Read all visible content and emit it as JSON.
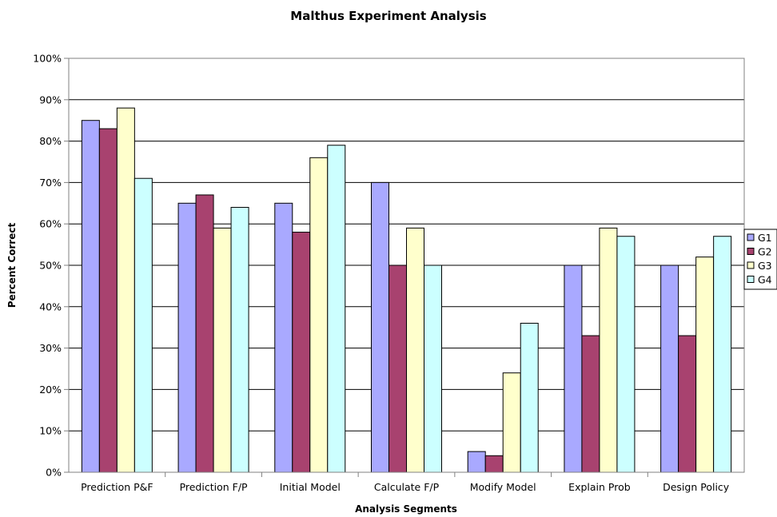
{
  "chart_data": {
    "type": "bar",
    "title": "Malthus Experiment Analysis",
    "xlabel": "Analysis Segments",
    "ylabel": "Percent Correct",
    "ylim": [
      0,
      100
    ],
    "yticks": [
      "0%",
      "10%",
      "20%",
      "30%",
      "40%",
      "50%",
      "60%",
      "70%",
      "80%",
      "90%",
      "100%"
    ],
    "grid": true,
    "legend_position": "right",
    "categories": [
      "Prediction P&F",
      "Prediction F/P",
      "Initial Model",
      "Calculate F/P",
      "Modify Model",
      "Explain Prob",
      "Design Policy"
    ],
    "series": [
      {
        "name": "G1",
        "color": "#a9a9ff",
        "values": [
          85,
          65,
          65,
          70,
          5,
          50,
          50
        ]
      },
      {
        "name": "G2",
        "color": "#a8426f",
        "values": [
          83,
          67,
          58,
          50,
          4,
          33,
          33
        ]
      },
      {
        "name": "G3",
        "color": "#ffffcc",
        "values": [
          88,
          59,
          76,
          59,
          24,
          59,
          52
        ]
      },
      {
        "name": "G4",
        "color": "#ccffff",
        "values": [
          71,
          64,
          79,
          50,
          36,
          57,
          57
        ]
      }
    ]
  }
}
